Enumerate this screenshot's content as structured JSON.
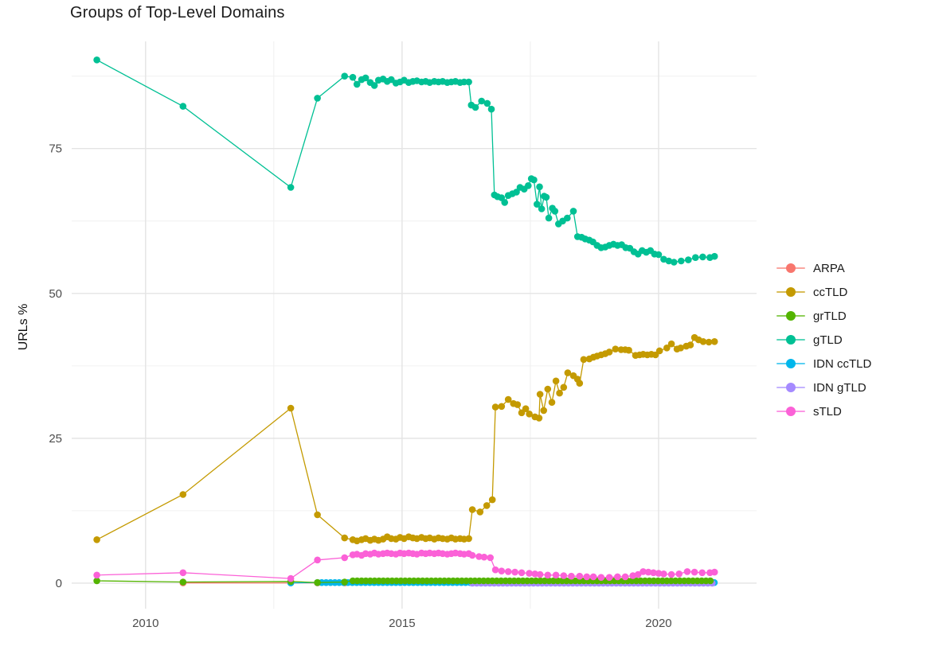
{
  "chart_data": {
    "type": "scatter",
    "title": "Groups of Top-Level Domains",
    "xlabel": "",
    "ylabel": "URLs %",
    "xlim": [
      2008.56,
      2021.91
    ],
    "ylim": [
      -4.4,
      93.5
    ],
    "x_ticks": [
      2010,
      2015,
      2020
    ],
    "x_minor_ticks": [
      2012.5,
      2017.5
    ],
    "y_ticks": [
      0,
      25,
      50,
      75
    ],
    "y_minor_ticks": [
      12.5,
      37.5,
      62.5,
      87.5
    ],
    "grid": "major and minor, light gray on white",
    "legend_position": "right",
    "marker": "point-with-line",
    "grid_major_color": "#e4e4e4",
    "grid_minor_color": "#f0f0f0",
    "tick_label_color": "#4d4d4d",
    "draw_order": [
      "ARPA",
      "IDN ccTLD",
      "IDN gTLD",
      "ccTLD",
      "grTLD",
      "gTLD",
      "sTLD"
    ],
    "series": [
      {
        "name": "ARPA",
        "color": "#F8766D",
        "points": [
          [
            2010.73,
            0.05
          ],
          [
            2012.83,
            0.05
          ],
          [
            2013.35,
            0.05
          ],
          [
            2013.88,
            0.05
          ]
        ]
      },
      {
        "name": "ccTLD",
        "color": "#C49A00",
        "points": [
          [
            2009.05,
            7.5
          ],
          [
            2010.73,
            15.3
          ],
          [
            2012.83,
            30.2
          ],
          [
            2013.35,
            11.8
          ],
          [
            2013.88,
            7.8
          ],
          [
            2014.04,
            7.5
          ],
          [
            2014.12,
            7.3
          ],
          [
            2014.21,
            7.5
          ],
          [
            2014.29,
            7.7
          ],
          [
            2014.38,
            7.4
          ],
          [
            2014.46,
            7.6
          ],
          [
            2014.54,
            7.4
          ],
          [
            2014.63,
            7.6
          ],
          [
            2014.71,
            8.0
          ],
          [
            2014.79,
            7.7
          ],
          [
            2014.88,
            7.6
          ],
          [
            2014.96,
            7.9
          ],
          [
            2015.04,
            7.7
          ],
          [
            2015.13,
            8.0
          ],
          [
            2015.21,
            7.8
          ],
          [
            2015.29,
            7.7
          ],
          [
            2015.38,
            7.9
          ],
          [
            2015.46,
            7.7
          ],
          [
            2015.54,
            7.8
          ],
          [
            2015.63,
            7.6
          ],
          [
            2015.71,
            7.8
          ],
          [
            2015.79,
            7.7
          ],
          [
            2015.88,
            7.6
          ],
          [
            2015.96,
            7.8
          ],
          [
            2016.04,
            7.6
          ],
          [
            2016.13,
            7.7
          ],
          [
            2016.21,
            7.6
          ],
          [
            2016.3,
            7.7
          ],
          [
            2016.37,
            12.7
          ],
          [
            2016.52,
            12.3
          ],
          [
            2016.65,
            13.4
          ],
          [
            2016.76,
            14.4
          ],
          [
            2016.82,
            30.4
          ],
          [
            2016.94,
            30.5
          ],
          [
            2017.07,
            31.7
          ],
          [
            2017.17,
            31.0
          ],
          [
            2017.25,
            30.8
          ],
          [
            2017.33,
            29.4
          ],
          [
            2017.41,
            30.1
          ],
          [
            2017.48,
            29.2
          ],
          [
            2017.59,
            28.7
          ],
          [
            2017.67,
            28.5
          ],
          [
            2017.69,
            32.6
          ],
          [
            2017.76,
            29.8
          ],
          [
            2017.84,
            33.5
          ],
          [
            2017.92,
            31.2
          ],
          [
            2018.0,
            34.9
          ],
          [
            2018.07,
            32.8
          ],
          [
            2018.15,
            33.8
          ],
          [
            2018.23,
            36.3
          ],
          [
            2018.34,
            35.8
          ],
          [
            2018.42,
            35.2
          ],
          [
            2018.46,
            34.5
          ],
          [
            2018.54,
            38.6
          ],
          [
            2018.65,
            38.7
          ],
          [
            2018.73,
            39.0
          ],
          [
            2018.8,
            39.2
          ],
          [
            2018.88,
            39.4
          ],
          [
            2018.96,
            39.6
          ],
          [
            2019.04,
            39.9
          ],
          [
            2019.16,
            40.4
          ],
          [
            2019.27,
            40.3
          ],
          [
            2019.35,
            40.3
          ],
          [
            2019.42,
            40.2
          ],
          [
            2019.55,
            39.3
          ],
          [
            2019.63,
            39.4
          ],
          [
            2019.7,
            39.5
          ],
          [
            2019.78,
            39.4
          ],
          [
            2019.86,
            39.5
          ],
          [
            2019.94,
            39.4
          ],
          [
            2020.02,
            40.1
          ],
          [
            2020.16,
            40.6
          ],
          [
            2020.25,
            41.3
          ],
          [
            2020.36,
            40.4
          ],
          [
            2020.43,
            40.6
          ],
          [
            2020.54,
            40.9
          ],
          [
            2020.62,
            41.1
          ],
          [
            2020.7,
            42.4
          ],
          [
            2020.78,
            42.0
          ],
          [
            2020.87,
            41.7
          ],
          [
            2020.98,
            41.6
          ],
          [
            2021.09,
            41.7
          ]
        ]
      },
      {
        "name": "grTLD",
        "color": "#53B400",
        "points": [
          [
            2009.05,
            0.4
          ],
          [
            2010.73,
            0.2
          ],
          [
            2012.83,
            0.3
          ],
          [
            2013.35,
            0.1
          ],
          [
            2013.88,
            0.2
          ]
        ],
        "runs": [
          {
            "from": 2014.04,
            "to": 2021.09,
            "step": 0.085,
            "value": 0.4
          }
        ]
      },
      {
        "name": "gTLD",
        "color": "#00C094",
        "points": [
          [
            2009.05,
            90.3
          ],
          [
            2010.73,
            82.3
          ],
          [
            2012.83,
            68.3
          ],
          [
            2013.35,
            83.7
          ],
          [
            2013.88,
            87.5
          ],
          [
            2014.04,
            87.3
          ],
          [
            2014.12,
            86.1
          ],
          [
            2014.21,
            86.9
          ],
          [
            2014.29,
            87.2
          ],
          [
            2014.38,
            86.4
          ],
          [
            2014.46,
            85.9
          ],
          [
            2014.54,
            86.8
          ],
          [
            2014.63,
            87.0
          ],
          [
            2014.71,
            86.6
          ],
          [
            2014.79,
            86.9
          ],
          [
            2014.88,
            86.3
          ],
          [
            2014.96,
            86.5
          ],
          [
            2015.04,
            86.8
          ],
          [
            2015.13,
            86.4
          ],
          [
            2015.21,
            86.6
          ],
          [
            2015.29,
            86.7
          ],
          [
            2015.38,
            86.5
          ],
          [
            2015.46,
            86.6
          ],
          [
            2015.54,
            86.4
          ],
          [
            2015.63,
            86.6
          ],
          [
            2015.71,
            86.5
          ],
          [
            2015.79,
            86.6
          ],
          [
            2015.88,
            86.4
          ],
          [
            2015.96,
            86.5
          ],
          [
            2016.04,
            86.6
          ],
          [
            2016.13,
            86.4
          ],
          [
            2016.21,
            86.5
          ],
          [
            2016.3,
            86.5
          ],
          [
            2016.35,
            82.5
          ],
          [
            2016.43,
            82.1
          ],
          [
            2016.55,
            83.2
          ],
          [
            2016.66,
            82.8
          ],
          [
            2016.74,
            81.8
          ],
          [
            2016.8,
            67.0
          ],
          [
            2016.86,
            66.7
          ],
          [
            2016.94,
            66.5
          ],
          [
            2017.0,
            65.7
          ],
          [
            2017.07,
            66.9
          ],
          [
            2017.15,
            67.2
          ],
          [
            2017.23,
            67.5
          ],
          [
            2017.3,
            68.3
          ],
          [
            2017.38,
            68.0
          ],
          [
            2017.46,
            68.6
          ],
          [
            2017.52,
            69.8
          ],
          [
            2017.57,
            69.6
          ],
          [
            2017.63,
            65.4
          ],
          [
            2017.68,
            68.4
          ],
          [
            2017.72,
            64.6
          ],
          [
            2017.77,
            66.8
          ],
          [
            2017.81,
            66.6
          ],
          [
            2017.86,
            63.0
          ],
          [
            2017.93,
            64.7
          ],
          [
            2017.98,
            64.2
          ],
          [
            2018.05,
            62.0
          ],
          [
            2018.13,
            62.5
          ],
          [
            2018.22,
            63.0
          ],
          [
            2018.34,
            64.2
          ],
          [
            2018.42,
            59.8
          ],
          [
            2018.5,
            59.7
          ],
          [
            2018.57,
            59.4
          ],
          [
            2018.65,
            59.2
          ],
          [
            2018.72,
            58.9
          ],
          [
            2018.8,
            58.3
          ],
          [
            2018.88,
            57.9
          ],
          [
            2018.96,
            58.0
          ],
          [
            2019.04,
            58.3
          ],
          [
            2019.12,
            58.5
          ],
          [
            2019.2,
            58.3
          ],
          [
            2019.28,
            58.4
          ],
          [
            2019.36,
            57.9
          ],
          [
            2019.44,
            57.8
          ],
          [
            2019.52,
            57.2
          ],
          [
            2019.6,
            56.8
          ],
          [
            2019.68,
            57.4
          ],
          [
            2019.76,
            57.1
          ],
          [
            2019.84,
            57.4
          ],
          [
            2019.92,
            56.8
          ],
          [
            2020.0,
            56.7
          ],
          [
            2020.1,
            55.9
          ],
          [
            2020.2,
            55.6
          ],
          [
            2020.3,
            55.4
          ],
          [
            2020.44,
            55.6
          ],
          [
            2020.58,
            55.8
          ],
          [
            2020.72,
            56.2
          ],
          [
            2020.86,
            56.3
          ],
          [
            2021.0,
            56.2
          ],
          [
            2021.09,
            56.4
          ]
        ]
      },
      {
        "name": "IDN ccTLD",
        "color": "#00B6EB",
        "points": [
          [
            2012.83,
            0.05
          ]
        ],
        "runs": [
          {
            "from": 2013.35,
            "to": 2021.09,
            "step": 0.085,
            "value": 0.1
          }
        ]
      },
      {
        "name": "IDN gTLD",
        "color": "#A58AFF",
        "points": [],
        "runs": [
          {
            "from": 2016.37,
            "to": 2021.09,
            "step": 0.085,
            "value": 0.0
          }
        ]
      },
      {
        "name": "sTLD",
        "color": "#FB61D7",
        "points": [
          [
            2009.05,
            1.4
          ],
          [
            2010.73,
            1.8
          ],
          [
            2012.83,
            0.8
          ],
          [
            2013.35,
            4.0
          ],
          [
            2013.88,
            4.4
          ],
          [
            2014.04,
            4.9
          ],
          [
            2014.12,
            5.0
          ],
          [
            2014.21,
            4.8
          ],
          [
            2014.29,
            5.1
          ],
          [
            2014.38,
            5.0
          ],
          [
            2014.46,
            5.2
          ],
          [
            2014.54,
            5.0
          ],
          [
            2014.63,
            5.1
          ],
          [
            2014.71,
            5.2
          ],
          [
            2014.79,
            5.1
          ],
          [
            2014.88,
            5.0
          ],
          [
            2014.96,
            5.2
          ],
          [
            2015.04,
            5.1
          ],
          [
            2015.13,
            5.2
          ],
          [
            2015.21,
            5.1
          ],
          [
            2015.29,
            5.0
          ],
          [
            2015.38,
            5.2
          ],
          [
            2015.46,
            5.1
          ],
          [
            2015.54,
            5.2
          ],
          [
            2015.63,
            5.1
          ],
          [
            2015.71,
            5.2
          ],
          [
            2015.79,
            5.1
          ],
          [
            2015.88,
            5.0
          ],
          [
            2015.96,
            5.1
          ],
          [
            2016.04,
            5.2
          ],
          [
            2016.13,
            5.1
          ],
          [
            2016.21,
            5.0
          ],
          [
            2016.3,
            5.1
          ],
          [
            2016.37,
            4.8
          ],
          [
            2016.5,
            4.6
          ],
          [
            2016.6,
            4.5
          ],
          [
            2016.72,
            4.4
          ],
          [
            2016.82,
            2.3
          ],
          [
            2016.94,
            2.1
          ],
          [
            2017.07,
            2.0
          ],
          [
            2017.2,
            1.9
          ],
          [
            2017.33,
            1.8
          ],
          [
            2017.48,
            1.7
          ],
          [
            2017.59,
            1.6
          ],
          [
            2017.69,
            1.5
          ],
          [
            2017.84,
            1.4
          ],
          [
            2018.0,
            1.4
          ],
          [
            2018.15,
            1.3
          ],
          [
            2018.3,
            1.2
          ],
          [
            2018.46,
            1.2
          ],
          [
            2018.6,
            1.1
          ],
          [
            2018.73,
            1.1
          ],
          [
            2018.88,
            1.0
          ],
          [
            2019.04,
            1.0
          ],
          [
            2019.2,
            1.1
          ],
          [
            2019.35,
            1.1
          ],
          [
            2019.5,
            1.3
          ],
          [
            2019.6,
            1.5
          ],
          [
            2019.7,
            2.0
          ],
          [
            2019.8,
            1.9
          ],
          [
            2019.9,
            1.8
          ],
          [
            2020.0,
            1.7
          ],
          [
            2020.1,
            1.6
          ],
          [
            2020.25,
            1.5
          ],
          [
            2020.4,
            1.6
          ],
          [
            2020.56,
            2.0
          ],
          [
            2020.7,
            1.9
          ],
          [
            2020.85,
            1.8
          ],
          [
            2021.0,
            1.8
          ],
          [
            2021.09,
            1.9
          ]
        ]
      }
    ]
  }
}
